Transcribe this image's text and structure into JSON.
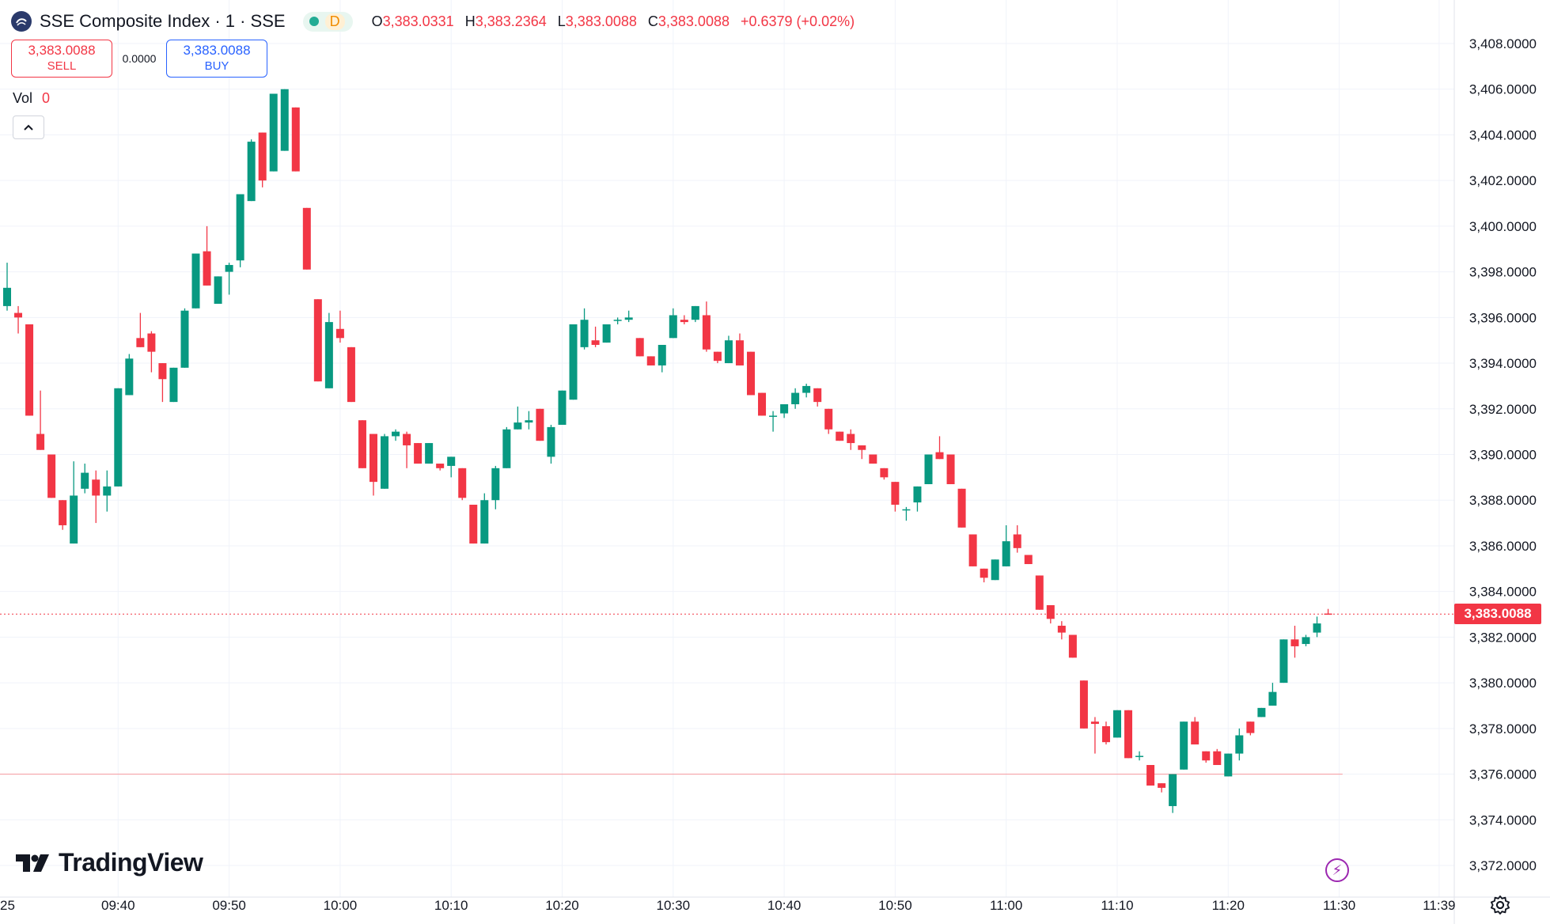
{
  "legend": {
    "title": "SSE Composite Index · 1 · SSE",
    "status_badge": "D",
    "ohlc": [
      {
        "key": "O",
        "value": "3,383.0331"
      },
      {
        "key": "H",
        "value": "3,383.2364"
      },
      {
        "key": "L",
        "value": "3,383.0088"
      },
      {
        "key": "C",
        "value": "3,383.0088"
      }
    ],
    "change": "+0.6379 (+0.02%)"
  },
  "trade": {
    "sell_price": "3,383.0088",
    "sell_label": "SELL",
    "spread": "0.0000",
    "buy_price": "3,383.0088",
    "buy_label": "BUY"
  },
  "volume": {
    "label": "Vol",
    "value": "0"
  },
  "last_price_label": "3,383.0088",
  "brand": "TradingView",
  "colors": {
    "up": "#089981",
    "down": "#f23645",
    "grid": "#f0f3fa",
    "text": "#131722"
  },
  "icons": [
    "sse-logo-icon",
    "chevron-up-icon",
    "tradingview-logo-icon",
    "lightning-icon",
    "settings-gear-icon"
  ],
  "chart_data": {
    "type": "candlestick",
    "title": "SSE Composite Index",
    "interval": "1",
    "exchange": "SSE",
    "ylim": [
      3371,
      3409
    ],
    "y_ticks": [
      "3,372.0000",
      "3,374.0000",
      "3,376.0000",
      "3,378.0000",
      "3,380.0000",
      "3,382.0000",
      "3,384.0000",
      "3,386.0000",
      "3,388.0000",
      "3,390.0000",
      "3,392.0000",
      "3,394.0000",
      "3,396.0000",
      "3,398.0000",
      "3,400.0000",
      "3,402.0000",
      "3,404.0000",
      "3,406.0000",
      "3,408.0000"
    ],
    "x_ticks": [
      "25",
      "09:40",
      "09:50",
      "10:00",
      "10:10",
      "10:20",
      "10:30",
      "10:40",
      "10:50",
      "11:00",
      "11:10",
      "11:20",
      "11:30",
      "11:39"
    ],
    "last_price": 3383.0088,
    "reference_line": 3376.0,
    "grid": true,
    "candles": [
      {
        "t": "09:30",
        "o": 3396.5,
        "h": 3398.4,
        "l": 3396.3,
        "c": 3397.3
      },
      {
        "t": "09:31",
        "o": 3396.2,
        "h": 3396.5,
        "l": 3395.3,
        "c": 3396.0
      },
      {
        "t": "09:32",
        "o": 3395.7,
        "h": 3395.7,
        "l": 3391.7,
        "c": 3391.7
      },
      {
        "t": "09:33",
        "o": 3390.9,
        "h": 3392.8,
        "l": 3390.2,
        "c": 3390.2
      },
      {
        "t": "09:34",
        "o": 3390.0,
        "h": 3390.0,
        "l": 3388.1,
        "c": 3388.1
      },
      {
        "t": "09:35",
        "o": 3388.0,
        "h": 3388.0,
        "l": 3386.7,
        "c": 3386.9
      },
      {
        "t": "09:36",
        "o": 3386.1,
        "h": 3389.7,
        "l": 3386.1,
        "c": 3388.2
      },
      {
        "t": "09:37",
        "o": 3388.5,
        "h": 3389.6,
        "l": 3388.3,
        "c": 3389.2
      },
      {
        "t": "09:38",
        "o": 3388.9,
        "h": 3389.3,
        "l": 3387.0,
        "c": 3388.2
      },
      {
        "t": "09:39",
        "o": 3388.2,
        "h": 3389.3,
        "l": 3387.5,
        "c": 3388.6
      },
      {
        "t": "09:40",
        "o": 3388.6,
        "h": 3392.9,
        "l": 3388.6,
        "c": 3392.9
      },
      {
        "t": "09:41",
        "o": 3392.6,
        "h": 3394.4,
        "l": 3392.6,
        "c": 3394.2
      },
      {
        "t": "09:42",
        "o": 3395.1,
        "h": 3396.2,
        "l": 3394.7,
        "c": 3394.7
      },
      {
        "t": "09:43",
        "o": 3395.3,
        "h": 3395.4,
        "l": 3393.6,
        "c": 3394.5
      },
      {
        "t": "09:44",
        "o": 3394.0,
        "h": 3394.0,
        "l": 3392.3,
        "c": 3393.3
      },
      {
        "t": "09:45",
        "o": 3392.3,
        "h": 3393.8,
        "l": 3392.3,
        "c": 3393.8
      },
      {
        "t": "09:46",
        "o": 3393.8,
        "h": 3396.4,
        "l": 3393.8,
        "c": 3396.3
      },
      {
        "t": "09:47",
        "o": 3396.4,
        "h": 3398.8,
        "l": 3396.4,
        "c": 3398.8
      },
      {
        "t": "09:48",
        "o": 3398.9,
        "h": 3400.0,
        "l": 3397.4,
        "c": 3397.4
      },
      {
        "t": "09:49",
        "o": 3396.6,
        "h": 3397.8,
        "l": 3396.6,
        "c": 3397.8
      },
      {
        "t": "09:50",
        "o": 3398.0,
        "h": 3398.4,
        "l": 3397.0,
        "c": 3398.3
      },
      {
        "t": "09:51",
        "o": 3398.5,
        "h": 3401.4,
        "l": 3398.2,
        "c": 3401.4
      },
      {
        "t": "09:52",
        "o": 3401.1,
        "h": 3403.8,
        "l": 3401.1,
        "c": 3403.7
      },
      {
        "t": "09:53",
        "o": 3404.1,
        "h": 3404.1,
        "l": 3401.7,
        "c": 3402.0
      },
      {
        "t": "09:54",
        "o": 3402.4,
        "h": 3405.8,
        "l": 3402.4,
        "c": 3405.8
      },
      {
        "t": "09:55",
        "o": 3403.3,
        "h": 3406.0,
        "l": 3403.3,
        "c": 3406.0
      },
      {
        "t": "09:56",
        "o": 3405.2,
        "h": 3405.2,
        "l": 3402.4,
        "c": 3402.4
      },
      {
        "t": "09:57",
        "o": 3400.8,
        "h": 3400.8,
        "l": 3398.1,
        "c": 3398.1
      },
      {
        "t": "09:58",
        "o": 3396.8,
        "h": 3396.8,
        "l": 3393.2,
        "c": 3393.2
      },
      {
        "t": "09:59",
        "o": 3392.9,
        "h": 3396.2,
        "l": 3392.9,
        "c": 3395.8
      },
      {
        "t": "10:00",
        "o": 3395.5,
        "h": 3396.3,
        "l": 3394.9,
        "c": 3395.1
      },
      {
        "t": "10:01",
        "o": 3394.7,
        "h": 3394.7,
        "l": 3392.3,
        "c": 3392.3
      },
      {
        "t": "10:02",
        "o": 3391.5,
        "h": 3391.5,
        "l": 3389.4,
        "c": 3389.4
      },
      {
        "t": "10:03",
        "o": 3390.9,
        "h": 3390.9,
        "l": 3388.2,
        "c": 3388.8
      },
      {
        "t": "10:04",
        "o": 3388.5,
        "h": 3390.9,
        "l": 3388.5,
        "c": 3390.8
      },
      {
        "t": "10:05",
        "o": 3390.8,
        "h": 3391.1,
        "l": 3390.6,
        "c": 3391.0
      },
      {
        "t": "10:06",
        "o": 3390.9,
        "h": 3391.0,
        "l": 3389.4,
        "c": 3390.4
      },
      {
        "t": "10:07",
        "o": 3390.5,
        "h": 3390.5,
        "l": 3389.6,
        "c": 3389.6
      },
      {
        "t": "10:08",
        "o": 3389.6,
        "h": 3390.5,
        "l": 3389.6,
        "c": 3390.5
      },
      {
        "t": "10:09",
        "o": 3389.6,
        "h": 3389.6,
        "l": 3389.3,
        "c": 3389.4
      },
      {
        "t": "10:10",
        "o": 3389.5,
        "h": 3389.9,
        "l": 3389.0,
        "c": 3389.9
      },
      {
        "t": "10:11",
        "o": 3389.4,
        "h": 3389.4,
        "l": 3388.0,
        "c": 3388.1
      },
      {
        "t": "10:12",
        "o": 3387.8,
        "h": 3387.8,
        "l": 3386.1,
        "c": 3386.1
      },
      {
        "t": "10:13",
        "o": 3386.1,
        "h": 3388.3,
        "l": 3386.1,
        "c": 3388.0
      },
      {
        "t": "10:14",
        "o": 3388.0,
        "h": 3389.5,
        "l": 3387.6,
        "c": 3389.4
      },
      {
        "t": "10:15",
        "o": 3389.4,
        "h": 3391.2,
        "l": 3389.4,
        "c": 3391.1
      },
      {
        "t": "10:16",
        "o": 3391.1,
        "h": 3392.1,
        "l": 3391.1,
        "c": 3391.4
      },
      {
        "t": "10:17",
        "o": 3391.4,
        "h": 3391.9,
        "l": 3391.1,
        "c": 3391.5
      },
      {
        "t": "10:18",
        "o": 3392.0,
        "h": 3392.0,
        "l": 3390.6,
        "c": 3390.6
      },
      {
        "t": "10:19",
        "o": 3389.9,
        "h": 3391.3,
        "l": 3389.6,
        "c": 3391.2
      },
      {
        "t": "10:20",
        "o": 3391.3,
        "h": 3392.8,
        "l": 3391.3,
        "c": 3392.8
      },
      {
        "t": "10:21",
        "o": 3392.4,
        "h": 3395.7,
        "l": 3392.4,
        "c": 3395.7
      },
      {
        "t": "10:22",
        "o": 3394.7,
        "h": 3396.4,
        "l": 3394.6,
        "c": 3395.9
      },
      {
        "t": "10:23",
        "o": 3395.0,
        "h": 3395.6,
        "l": 3394.7,
        "c": 3394.8
      },
      {
        "t": "10:24",
        "o": 3394.9,
        "h": 3395.7,
        "l": 3394.9,
        "c": 3395.7
      },
      {
        "t": "10:25",
        "o": 3395.9,
        "h": 3396.0,
        "l": 3395.7,
        "c": 3395.9
      },
      {
        "t": "10:26",
        "o": 3395.9,
        "h": 3396.3,
        "l": 3395.8,
        "c": 3396.0
      },
      {
        "t": "10:27",
        "o": 3395.1,
        "h": 3395.1,
        "l": 3394.3,
        "c": 3394.3
      },
      {
        "t": "10:28",
        "o": 3394.3,
        "h": 3394.3,
        "l": 3393.9,
        "c": 3393.9
      },
      {
        "t": "10:29",
        "o": 3393.9,
        "h": 3394.5,
        "l": 3393.6,
        "c": 3394.8
      },
      {
        "t": "10:30",
        "o": 3395.1,
        "h": 3396.4,
        "l": 3395.1,
        "c": 3396.1
      },
      {
        "t": "10:31",
        "o": 3395.9,
        "h": 3396.1,
        "l": 3395.7,
        "c": 3395.8
      },
      {
        "t": "10:32",
        "o": 3395.9,
        "h": 3396.5,
        "l": 3395.8,
        "c": 3396.5
      },
      {
        "t": "10:33",
        "o": 3396.1,
        "h": 3396.7,
        "l": 3394.5,
        "c": 3394.6
      },
      {
        "t": "10:34",
        "o": 3394.5,
        "h": 3394.5,
        "l": 3394.0,
        "c": 3394.1
      },
      {
        "t": "10:35",
        "o": 3394.0,
        "h": 3395.2,
        "l": 3394.0,
        "c": 3395.0
      },
      {
        "t": "10:36",
        "o": 3395.0,
        "h": 3395.3,
        "l": 3393.9,
        "c": 3393.9
      },
      {
        "t": "10:37",
        "o": 3394.5,
        "h": 3394.5,
        "l": 3392.6,
        "c": 3392.6
      },
      {
        "t": "10:38",
        "o": 3392.7,
        "h": 3392.7,
        "l": 3391.7,
        "c": 3391.7
      },
      {
        "t": "10:39",
        "o": 3391.7,
        "h": 3391.9,
        "l": 3391.0,
        "c": 3391.7
      },
      {
        "t": "10:40",
        "o": 3391.8,
        "h": 3392.0,
        "l": 3391.6,
        "c": 3392.2
      },
      {
        "t": "10:41",
        "o": 3392.2,
        "h": 3392.9,
        "l": 3392.0,
        "c": 3392.7
      },
      {
        "t": "10:42",
        "o": 3392.7,
        "h": 3393.1,
        "l": 3392.5,
        "c": 3393.0
      },
      {
        "t": "10:43",
        "o": 3392.9,
        "h": 3392.9,
        "l": 3392.1,
        "c": 3392.3
      },
      {
        "t": "10:44",
        "o": 3392.0,
        "h": 3392.0,
        "l": 3390.9,
        "c": 3391.1
      },
      {
        "t": "10:45",
        "o": 3391.0,
        "h": 3391.0,
        "l": 3390.6,
        "c": 3390.6
      },
      {
        "t": "10:46",
        "o": 3390.9,
        "h": 3391.1,
        "l": 3390.2,
        "c": 3390.5
      },
      {
        "t": "10:47",
        "o": 3390.4,
        "h": 3390.4,
        "l": 3389.8,
        "c": 3390.2
      },
      {
        "t": "10:48",
        "o": 3390.0,
        "h": 3390.0,
        "l": 3389.6,
        "c": 3389.6
      },
      {
        "t": "10:49",
        "o": 3389.4,
        "h": 3389.4,
        "l": 3388.9,
        "c": 3389.0
      },
      {
        "t": "10:50",
        "o": 3388.8,
        "h": 3388.8,
        "l": 3387.5,
        "c": 3387.8
      },
      {
        "t": "10:51",
        "o": 3387.6,
        "h": 3387.7,
        "l": 3387.1,
        "c": 3387.6
      },
      {
        "t": "10:52",
        "o": 3387.9,
        "h": 3388.6,
        "l": 3387.5,
        "c": 3388.6
      },
      {
        "t": "10:53",
        "o": 3388.7,
        "h": 3390.0,
        "l": 3388.7,
        "c": 3390.0
      },
      {
        "t": "10:54",
        "o": 3390.1,
        "h": 3390.8,
        "l": 3389.8,
        "c": 3389.8
      },
      {
        "t": "10:55",
        "o": 3390.0,
        "h": 3390.0,
        "l": 3388.7,
        "c": 3388.7
      },
      {
        "t": "10:56",
        "o": 3388.5,
        "h": 3388.5,
        "l": 3386.8,
        "c": 3386.8
      },
      {
        "t": "10:57",
        "o": 3386.5,
        "h": 3386.5,
        "l": 3385.1,
        "c": 3385.1
      },
      {
        "t": "10:58",
        "o": 3385.0,
        "h": 3385.0,
        "l": 3384.4,
        "c": 3384.6
      },
      {
        "t": "10:59",
        "o": 3384.5,
        "h": 3385.4,
        "l": 3384.5,
        "c": 3385.4
      },
      {
        "t": "11:00",
        "o": 3385.1,
        "h": 3386.9,
        "l": 3385.1,
        "c": 3386.2
      },
      {
        "t": "11:01",
        "o": 3386.5,
        "h": 3386.9,
        "l": 3385.7,
        "c": 3385.9
      },
      {
        "t": "11:02",
        "o": 3385.6,
        "h": 3385.6,
        "l": 3385.2,
        "c": 3385.2
      },
      {
        "t": "11:03",
        "o": 3384.7,
        "h": 3384.7,
        "l": 3383.2,
        "c": 3383.2
      },
      {
        "t": "11:04",
        "o": 3383.4,
        "h": 3383.4,
        "l": 3382.6,
        "c": 3382.8
      },
      {
        "t": "11:05",
        "o": 3382.5,
        "h": 3382.7,
        "l": 3381.9,
        "c": 3382.2
      },
      {
        "t": "11:06",
        "o": 3382.1,
        "h": 3382.1,
        "l": 3381.1,
        "c": 3381.1
      },
      {
        "t": "11:07",
        "o": 3380.1,
        "h": 3380.1,
        "l": 3378.0,
        "c": 3378.0
      },
      {
        "t": "11:08",
        "o": 3378.3,
        "h": 3378.5,
        "l": 3376.9,
        "c": 3378.2
      },
      {
        "t": "11:09",
        "o": 3378.1,
        "h": 3378.3,
        "l": 3377.3,
        "c": 3377.4
      },
      {
        "t": "11:10",
        "o": 3377.6,
        "h": 3378.8,
        "l": 3377.6,
        "c": 3378.8
      },
      {
        "t": "11:11",
        "o": 3378.8,
        "h": 3378.8,
        "l": 3376.7,
        "c": 3376.7
      },
      {
        "t": "11:12",
        "o": 3376.8,
        "h": 3377.0,
        "l": 3376.6,
        "c": 3376.8
      },
      {
        "t": "11:13",
        "o": 3376.4,
        "h": 3376.4,
        "l": 3375.5,
        "c": 3375.5
      },
      {
        "t": "11:14",
        "o": 3375.6,
        "h": 3375.6,
        "l": 3375.2,
        "c": 3375.4
      },
      {
        "t": "11:15",
        "o": 3374.6,
        "h": 3376.0,
        "l": 3374.3,
        "c": 3376.0
      },
      {
        "t": "11:16",
        "o": 3376.2,
        "h": 3378.3,
        "l": 3376.2,
        "c": 3378.3
      },
      {
        "t": "11:17",
        "o": 3378.3,
        "h": 3378.5,
        "l": 3377.3,
        "c": 3377.3
      },
      {
        "t": "11:18",
        "o": 3377.0,
        "h": 3377.0,
        "l": 3376.5,
        "c": 3376.6
      },
      {
        "t": "11:19",
        "o": 3377.0,
        "h": 3377.1,
        "l": 3376.5,
        "c": 3376.4
      },
      {
        "t": "11:20",
        "o": 3375.9,
        "h": 3376.9,
        "l": 3375.9,
        "c": 3376.9
      },
      {
        "t": "11:21",
        "o": 3376.9,
        "h": 3378.0,
        "l": 3376.6,
        "c": 3377.7
      },
      {
        "t": "11:22",
        "o": 3378.3,
        "h": 3378.3,
        "l": 3377.7,
        "c": 3377.8
      },
      {
        "t": "11:23",
        "o": 3378.5,
        "h": 3378.9,
        "l": 3378.5,
        "c": 3378.9
      },
      {
        "t": "11:24",
        "o": 3379.0,
        "h": 3380.0,
        "l": 3379.0,
        "c": 3379.6
      },
      {
        "t": "11:25",
        "o": 3380.0,
        "h": 3381.9,
        "l": 3380.0,
        "c": 3381.9
      },
      {
        "t": "11:26",
        "o": 3381.9,
        "h": 3382.5,
        "l": 3381.1,
        "c": 3381.6
      },
      {
        "t": "11:27",
        "o": 3381.7,
        "h": 3382.1,
        "l": 3381.6,
        "c": 3382.0
      },
      {
        "t": "11:28",
        "o": 3382.2,
        "h": 3382.9,
        "l": 3382.0,
        "c": 3382.6
      },
      {
        "t": "11:29",
        "o": 3383.0331,
        "h": 3383.2364,
        "l": 3383.0088,
        "c": 3383.0088
      }
    ]
  }
}
